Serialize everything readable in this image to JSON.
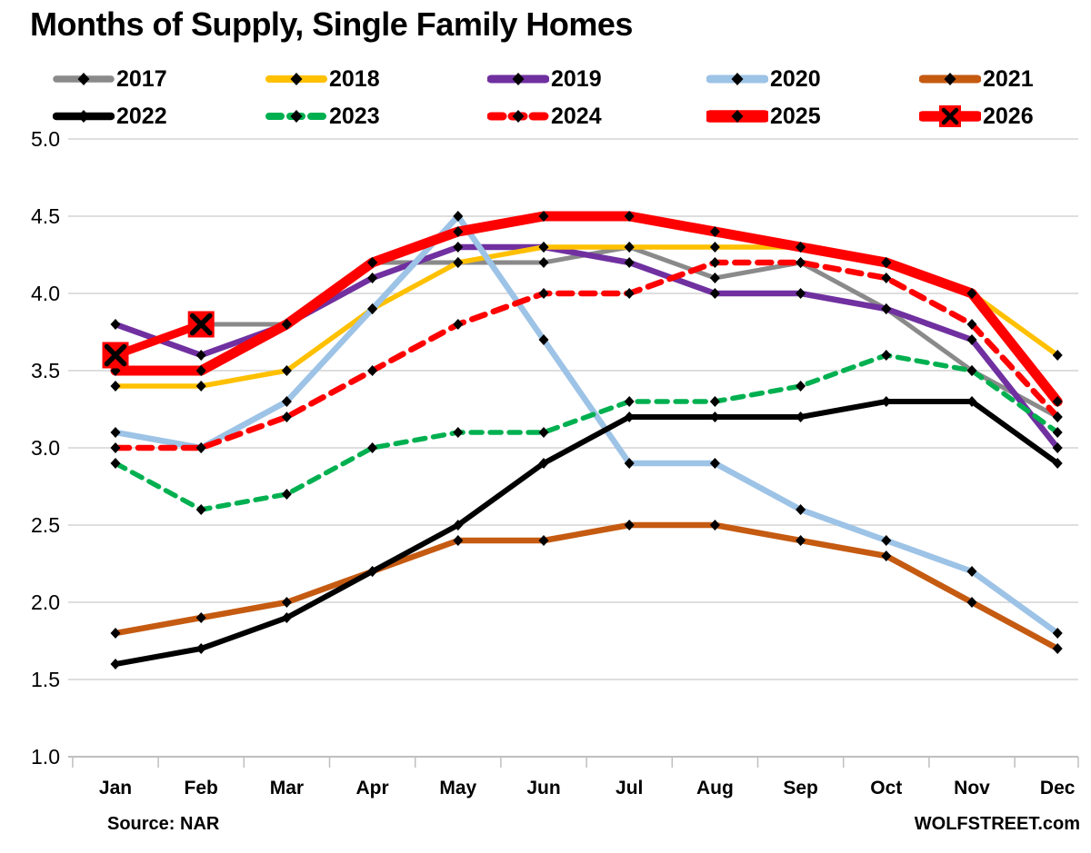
{
  "chart_data": {
    "type": "line",
    "title": "Months of Supply, Single Family Homes",
    "categories": [
      "Jan",
      "Feb",
      "Mar",
      "Apr",
      "May",
      "Jun",
      "Jul",
      "Aug",
      "Sep",
      "Oct",
      "Nov",
      "Dec"
    ],
    "y_ticks": [
      "5.0",
      "4.5",
      "4.0",
      "3.5",
      "3.0",
      "2.5",
      "2.0",
      "1.5",
      "1.0"
    ],
    "ylim": [
      1.0,
      5.0
    ],
    "grid": true,
    "legend_position": "top",
    "series": [
      {
        "name": "2017",
        "color": "#8A8A8A",
        "style": "solid",
        "width": 5,
        "marker": "diamond",
        "values": [
          3.6,
          3.8,
          3.8,
          4.2,
          4.2,
          4.2,
          4.3,
          4.1,
          4.2,
          3.9,
          3.5,
          3.2
        ]
      },
      {
        "name": "2018",
        "color": "#FFC000",
        "style": "solid",
        "width": 5.5,
        "marker": "diamond",
        "values": [
          3.4,
          3.4,
          3.5,
          3.9,
          4.2,
          4.3,
          4.3,
          4.3,
          4.3,
          4.2,
          4.0,
          3.6
        ]
      },
      {
        "name": "2019",
        "color": "#7030A0",
        "style": "solid",
        "width": 6.5,
        "marker": "diamond",
        "values": [
          3.8,
          3.6,
          3.8,
          4.1,
          4.3,
          4.3,
          4.2,
          4.0,
          4.0,
          3.9,
          3.7,
          3.0
        ]
      },
      {
        "name": "2020",
        "color": "#9DC3E6",
        "style": "solid",
        "width": 6.5,
        "marker": "diamond",
        "values": [
          3.1,
          3.0,
          3.3,
          3.9,
          4.5,
          3.7,
          2.9,
          2.9,
          2.6,
          2.4,
          2.2,
          1.8
        ]
      },
      {
        "name": "2021",
        "color": "#C55A11",
        "style": "solid",
        "width": 6.5,
        "marker": "diamond",
        "values": [
          1.8,
          1.9,
          2.0,
          2.2,
          2.4,
          2.4,
          2.5,
          2.5,
          2.4,
          2.3,
          2.0,
          1.7
        ]
      },
      {
        "name": "2022",
        "color": "#000000",
        "style": "solid",
        "width": 6,
        "marker": "diamond",
        "values": [
          1.6,
          1.7,
          1.9,
          2.2,
          2.5,
          2.9,
          3.2,
          3.2,
          3.2,
          3.3,
          3.3,
          2.9
        ]
      },
      {
        "name": "2023",
        "color": "#00B050",
        "style": "dashed",
        "width": 5.5,
        "marker": "diamond",
        "values": [
          2.9,
          2.6,
          2.7,
          3.0,
          3.1,
          3.1,
          3.3,
          3.3,
          3.4,
          3.6,
          3.5,
          3.1
        ]
      },
      {
        "name": "2024",
        "color": "#FF0000",
        "style": "dashed",
        "width": 6.5,
        "marker": "diamond",
        "values": [
          3.0,
          3.0,
          3.2,
          3.5,
          3.8,
          4.0,
          4.0,
          4.2,
          4.2,
          4.1,
          3.8,
          3.2
        ]
      },
      {
        "name": "2025",
        "color": "#FF0000",
        "style": "solid",
        "width": 11,
        "marker": "diamond",
        "values": [
          3.5,
          3.5,
          3.8,
          4.2,
          4.4,
          4.5,
          4.5,
          4.4,
          4.3,
          4.2,
          4.0,
          3.3
        ]
      },
      {
        "name": "2026",
        "color": "#FF0000",
        "style": "solid",
        "width": 9,
        "marker": "x-square",
        "values": [
          3.6,
          3.8,
          null,
          null,
          null,
          null,
          null,
          null,
          null,
          null,
          null,
          null
        ]
      }
    ]
  },
  "source_note": "Source: NAR",
  "watermark": "WOLFSTREET.com",
  "colors": {
    "grid": "#D9D9D9",
    "axis": "#BFBFBF",
    "marker": "#000000",
    "background": "#FFFFFF",
    "text": "#000000"
  }
}
